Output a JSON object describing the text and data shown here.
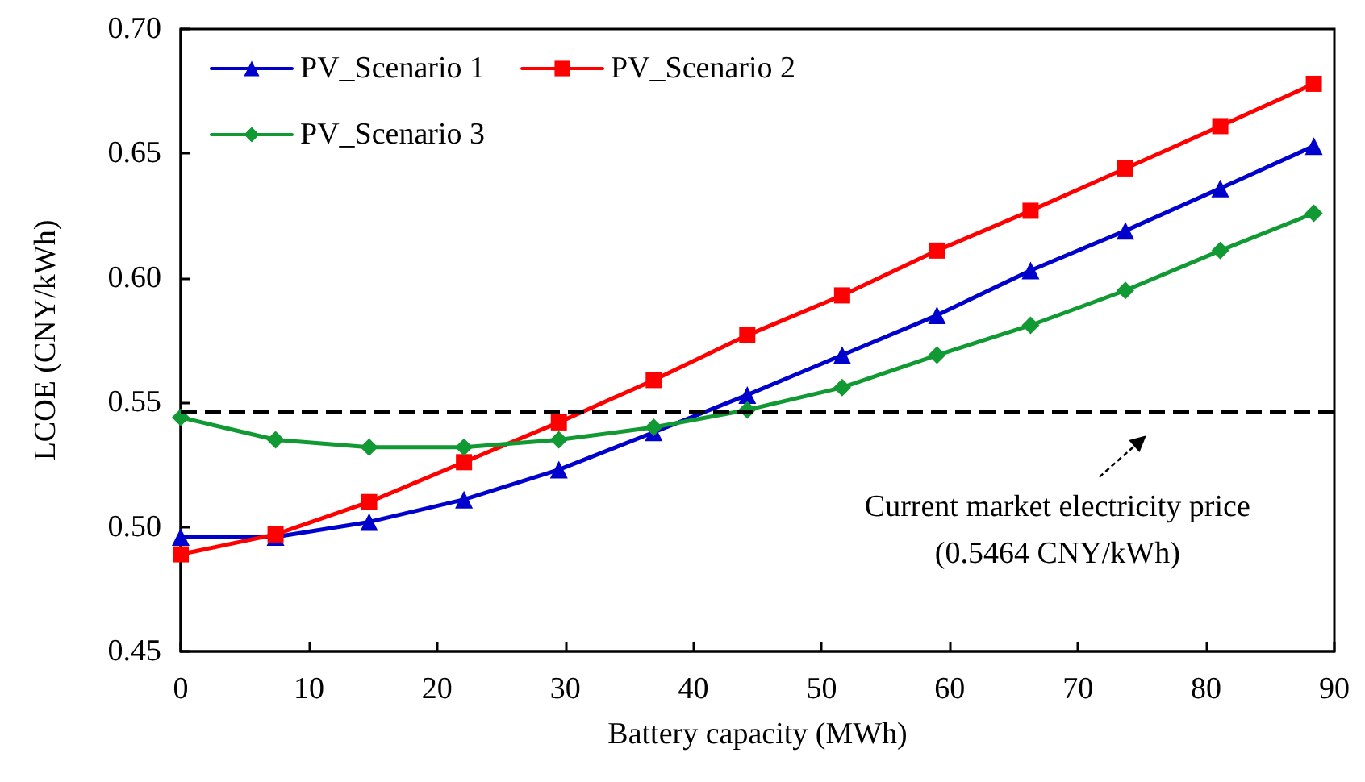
{
  "chart_data": {
    "type": "line",
    "xlabel": "Battery capacity (MWh)",
    "ylabel": "LCOE (CNY/kWh)",
    "x": [
      0,
      7.4,
      14.7,
      22.1,
      29.5,
      36.9,
      44.2,
      51.6,
      59.0,
      66.3,
      73.7,
      81.1,
      88.4
    ],
    "series": [
      {
        "name": "PV_Scenario 1",
        "color": "#0000cc",
        "marker": "triangle",
        "values": [
          0.496,
          0.496,
          0.502,
          0.511,
          0.523,
          0.538,
          0.553,
          0.569,
          0.585,
          0.603,
          0.619,
          0.636,
          0.653
        ]
      },
      {
        "name": "PV_Scenario 2",
        "color": "#ff0000",
        "marker": "square",
        "values": [
          0.489,
          0.497,
          0.51,
          0.526,
          0.542,
          0.559,
          0.577,
          0.593,
          0.611,
          0.627,
          0.644,
          0.661,
          0.678
        ]
      },
      {
        "name": "PV_Scenario 3",
        "color": "#119933",
        "marker": "diamond",
        "values": [
          0.544,
          0.535,
          0.532,
          0.532,
          0.535,
          0.54,
          0.547,
          0.556,
          0.569,
          0.581,
          0.595,
          0.611,
          0.626
        ]
      }
    ],
    "xlim": [
      0,
      90
    ],
    "xticks": [
      0,
      10,
      20,
      30,
      40,
      50,
      60,
      70,
      80,
      90
    ],
    "ylim": [
      0.45,
      0.7
    ],
    "yticks": [
      0.45,
      {
        "value": 0.5,
        "label": "0.50"
      },
      0.55,
      {
        "value": 0.6,
        "label": "0.60"
      },
      0.65,
      {
        "value": 0.7,
        "label": "0.70"
      }
    ],
    "ref_lines": [
      {
        "axis": "y",
        "value": 0.5464,
        "label": "Current market electricity price\n(0.5464 CNY/kWh)",
        "color": "#000000",
        "line_style": "dashed"
      }
    ],
    "grid": false,
    "legend": "top left",
    "line_style": "solid"
  }
}
